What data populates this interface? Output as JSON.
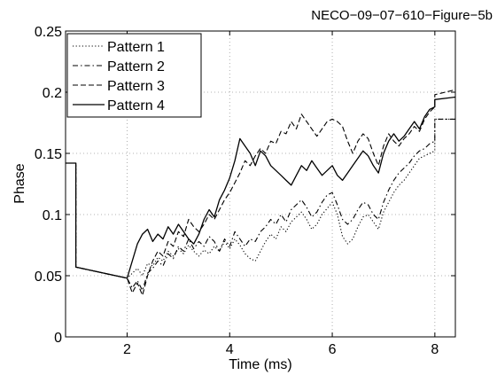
{
  "figure_label": "NECO−09−07−610−Figure−5b",
  "chart_data": {
    "type": "line",
    "xlabel": "Time (ms)",
    "ylabel": "Phase",
    "xlim": [
      0.8,
      8.4
    ],
    "ylim": [
      0,
      0.25
    ],
    "x_ticks": [
      2,
      4,
      6,
      8
    ],
    "y_ticks": [
      0,
      0.05,
      0.1,
      0.15,
      0.2,
      0.25
    ],
    "y_tick_labels": [
      "0",
      "0.05",
      "0.1",
      "0.15",
      "0.2",
      "0.25"
    ],
    "grid": true,
    "legend_position": "top-left",
    "series": [
      {
        "name": "Pattern 1",
        "style": "dotted",
        "x": [
          0.8,
          1.0,
          1.0,
          2.0,
          2.1,
          2.2,
          2.3,
          2.4,
          2.5,
          2.6,
          2.7,
          2.8,
          2.9,
          3.0,
          3.1,
          3.2,
          3.3,
          3.4,
          3.5,
          3.6,
          3.7,
          3.8,
          3.9,
          4.0,
          4.1,
          4.2,
          4.3,
          4.4,
          4.5,
          4.6,
          4.7,
          4.8,
          4.9,
          5.0,
          5.1,
          5.2,
          5.3,
          5.4,
          5.5,
          5.6,
          5.7,
          5.8,
          5.9,
          6.0,
          6.1,
          6.2,
          6.3,
          6.4,
          6.5,
          6.6,
          6.7,
          6.8,
          6.9,
          7.0,
          7.1,
          7.2,
          7.3,
          7.4,
          7.5,
          7.6,
          7.7,
          7.8,
          7.9,
          8.0,
          8.0,
          8.4
        ],
        "y": [
          0.142,
          0.142,
          0.057,
          0.048,
          0.052,
          0.056,
          0.05,
          0.06,
          0.058,
          0.065,
          0.062,
          0.07,
          0.066,
          0.072,
          0.068,
          0.075,
          0.07,
          0.066,
          0.071,
          0.068,
          0.074,
          0.07,
          0.078,
          0.072,
          0.08,
          0.075,
          0.068,
          0.064,
          0.062,
          0.07,
          0.078,
          0.084,
          0.08,
          0.09,
          0.086,
          0.094,
          0.098,
          0.102,
          0.096,
          0.088,
          0.092,
          0.1,
          0.105,
          0.11,
          0.1,
          0.082,
          0.076,
          0.08,
          0.09,
          0.098,
          0.1,
          0.094,
          0.088,
          0.102,
          0.11,
          0.118,
          0.124,
          0.128,
          0.134,
          0.14,
          0.146,
          0.148,
          0.15,
          0.152,
          0.178,
          0.178
        ]
      },
      {
        "name": "Pattern 2",
        "style": "dashdot",
        "x": [
          0.8,
          1.0,
          1.0,
          2.0,
          2.1,
          2.2,
          2.3,
          2.4,
          2.5,
          2.6,
          2.7,
          2.8,
          2.9,
          3.0,
          3.1,
          3.2,
          3.3,
          3.4,
          3.5,
          3.6,
          3.7,
          3.8,
          3.9,
          4.0,
          4.1,
          4.2,
          4.3,
          4.4,
          4.5,
          4.6,
          4.7,
          4.8,
          4.9,
          5.0,
          5.1,
          5.2,
          5.3,
          5.4,
          5.5,
          5.6,
          5.7,
          5.8,
          5.9,
          6.0,
          6.1,
          6.2,
          6.3,
          6.4,
          6.5,
          6.6,
          6.7,
          6.8,
          6.9,
          7.0,
          7.1,
          7.2,
          7.3,
          7.4,
          7.5,
          7.6,
          7.7,
          7.8,
          7.9,
          8.0,
          8.0,
          8.4
        ],
        "y": [
          0.142,
          0.142,
          0.057,
          0.048,
          0.04,
          0.046,
          0.038,
          0.052,
          0.056,
          0.062,
          0.058,
          0.068,
          0.064,
          0.074,
          0.07,
          0.08,
          0.072,
          0.078,
          0.074,
          0.082,
          0.078,
          0.07,
          0.08,
          0.074,
          0.086,
          0.08,
          0.074,
          0.08,
          0.078,
          0.086,
          0.09,
          0.096,
          0.092,
          0.1,
          0.094,
          0.104,
          0.108,
          0.112,
          0.106,
          0.098,
          0.102,
          0.11,
          0.116,
          0.118,
          0.108,
          0.096,
          0.092,
          0.096,
          0.104,
          0.11,
          0.108,
          0.1,
          0.096,
          0.11,
          0.12,
          0.128,
          0.134,
          0.138,
          0.142,
          0.148,
          0.152,
          0.154,
          0.158,
          0.16,
          0.178,
          0.178
        ]
      },
      {
        "name": "Pattern 3",
        "style": "dashed",
        "x": [
          0.8,
          1.0,
          1.0,
          2.0,
          2.1,
          2.2,
          2.3,
          2.4,
          2.5,
          2.6,
          2.7,
          2.8,
          2.9,
          3.0,
          3.1,
          3.2,
          3.3,
          3.4,
          3.5,
          3.6,
          3.7,
          3.8,
          3.9,
          4.0,
          4.1,
          4.2,
          4.3,
          4.4,
          4.5,
          4.6,
          4.7,
          4.8,
          4.9,
          5.0,
          5.1,
          5.2,
          5.3,
          5.4,
          5.5,
          5.6,
          5.7,
          5.8,
          5.9,
          6.0,
          6.1,
          6.2,
          6.3,
          6.4,
          6.5,
          6.6,
          6.7,
          6.8,
          6.9,
          7.0,
          7.1,
          7.2,
          7.3,
          7.4,
          7.5,
          7.6,
          7.7,
          7.8,
          7.9,
          8.0,
          8.0,
          8.4
        ],
        "y": [
          0.142,
          0.142,
          0.057,
          0.048,
          0.036,
          0.044,
          0.034,
          0.05,
          0.062,
          0.07,
          0.066,
          0.078,
          0.074,
          0.086,
          0.082,
          0.096,
          0.09,
          0.086,
          0.092,
          0.1,
          0.096,
          0.104,
          0.112,
          0.118,
          0.126,
          0.134,
          0.144,
          0.14,
          0.148,
          0.154,
          0.15,
          0.16,
          0.158,
          0.168,
          0.166,
          0.176,
          0.17,
          0.182,
          0.176,
          0.17,
          0.164,
          0.17,
          0.176,
          0.178,
          0.176,
          0.172,
          0.16,
          0.15,
          0.16,
          0.166,
          0.162,
          0.15,
          0.14,
          0.156,
          0.166,
          0.16,
          0.156,
          0.162,
          0.166,
          0.172,
          0.168,
          0.178,
          0.184,
          0.188,
          0.198,
          0.202
        ]
      },
      {
        "name": "Pattern 4",
        "style": "solid",
        "x": [
          0.8,
          1.0,
          1.0,
          2.0,
          2.1,
          2.2,
          2.3,
          2.4,
          2.5,
          2.6,
          2.7,
          2.8,
          2.9,
          3.0,
          3.1,
          3.2,
          3.3,
          3.4,
          3.5,
          3.6,
          3.7,
          3.8,
          3.9,
          4.0,
          4.1,
          4.2,
          4.3,
          4.4,
          4.5,
          4.6,
          4.7,
          4.8,
          4.9,
          5.0,
          5.1,
          5.2,
          5.3,
          5.4,
          5.5,
          5.6,
          5.7,
          5.8,
          5.9,
          6.0,
          6.1,
          6.2,
          6.3,
          6.4,
          6.5,
          6.6,
          6.7,
          6.8,
          6.9,
          7.0,
          7.1,
          7.2,
          7.3,
          7.4,
          7.5,
          7.6,
          7.7,
          7.8,
          7.9,
          8.0,
          8.0,
          8.4
        ],
        "y": [
          0.142,
          0.142,
          0.057,
          0.048,
          0.062,
          0.076,
          0.084,
          0.088,
          0.078,
          0.084,
          0.08,
          0.09,
          0.084,
          0.092,
          0.086,
          0.08,
          0.076,
          0.084,
          0.096,
          0.104,
          0.098,
          0.112,
          0.12,
          0.13,
          0.144,
          0.162,
          0.156,
          0.15,
          0.14,
          0.152,
          0.148,
          0.14,
          0.136,
          0.132,
          0.128,
          0.124,
          0.132,
          0.14,
          0.136,
          0.144,
          0.138,
          0.132,
          0.136,
          0.14,
          0.132,
          0.128,
          0.134,
          0.14,
          0.146,
          0.152,
          0.148,
          0.14,
          0.134,
          0.15,
          0.16,
          0.166,
          0.16,
          0.164,
          0.17,
          0.176,
          0.17,
          0.18,
          0.186,
          0.188,
          0.194,
          0.196
        ]
      }
    ]
  }
}
